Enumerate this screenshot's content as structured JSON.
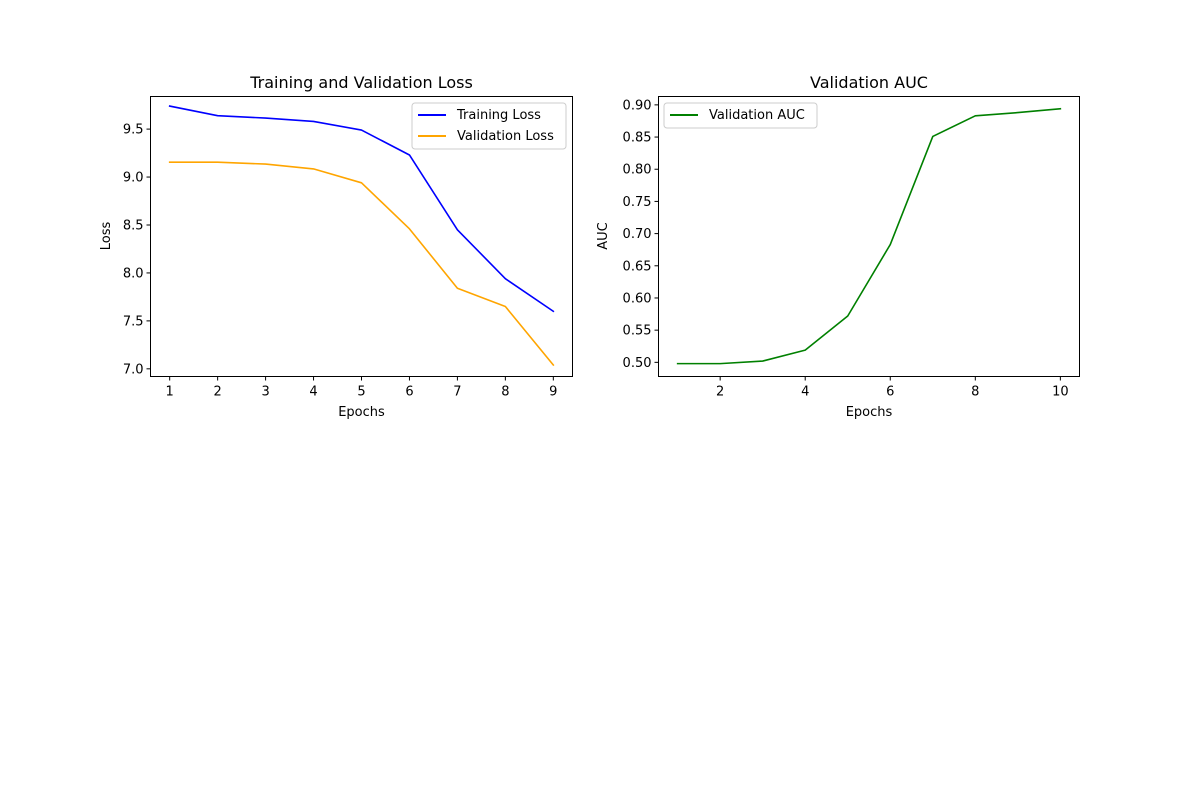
{
  "chart_data": [
    {
      "type": "line",
      "title": "Training and Validation Loss",
      "xlabel": "Epochs",
      "ylabel": "Loss",
      "x": [
        1,
        2,
        3,
        4,
        5,
        6,
        7,
        8,
        9
      ],
      "xlim": [
        0.6,
        9.4
      ],
      "ylim": [
        6.92,
        9.84
      ],
      "xticks": [
        1,
        2,
        3,
        4,
        5,
        6,
        7,
        8,
        9
      ],
      "yticks": [
        7.0,
        7.5,
        8.0,
        8.5,
        9.0,
        9.5
      ],
      "ytick_format": 1,
      "grid": false,
      "legend_position": "top-right",
      "series": [
        {
          "name": "Training Loss",
          "color": "#0000ff",
          "values": [
            9.74,
            9.64,
            9.615,
            9.58,
            9.49,
            9.23,
            8.45,
            7.94,
            7.6
          ]
        },
        {
          "name": "Validation Loss",
          "color": "#ffa500",
          "values": [
            9.155,
            9.155,
            9.135,
            9.085,
            8.94,
            8.46,
            7.84,
            7.65,
            7.04
          ]
        }
      ]
    },
    {
      "type": "line",
      "title": "Validation AUC",
      "xlabel": "Epochs",
      "ylabel": "AUC",
      "x": [
        1,
        2,
        3,
        4,
        5,
        6,
        7,
        8,
        9,
        10
      ],
      "xlim": [
        0.55,
        10.45
      ],
      "ylim": [
        0.478,
        0.913
      ],
      "xticks": [
        2,
        4,
        6,
        8,
        10
      ],
      "yticks": [
        0.5,
        0.55,
        0.6,
        0.65,
        0.7,
        0.75,
        0.8,
        0.85,
        0.9
      ],
      "ytick_format": 2,
      "grid": false,
      "legend_position": "top-left",
      "series": [
        {
          "name": "Validation AUC",
          "color": "#008000",
          "values": [
            0.498,
            0.498,
            0.502,
            0.519,
            0.572,
            0.683,
            0.851,
            0.883,
            0.888,
            0.894
          ]
        }
      ]
    }
  ]
}
